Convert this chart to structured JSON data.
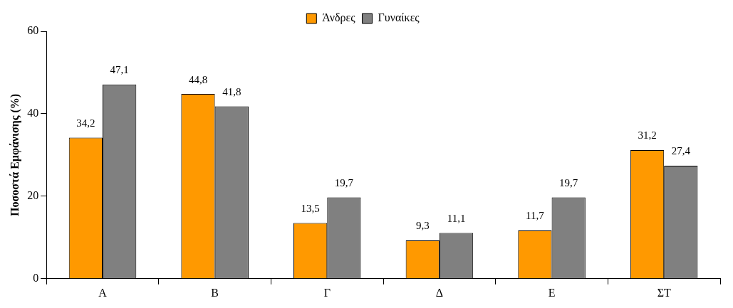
{
  "chart_data": {
    "type": "bar",
    "ylabel": "Ποσοστά Εμφάνισης (%)",
    "categories": [
      "Α",
      "Β",
      "Γ",
      "Δ",
      "Ε",
      "ΣΤ"
    ],
    "series": [
      {
        "name": "Άνδρες",
        "color": "#ff9900",
        "values": [
          34.2,
          44.8,
          13.5,
          9.3,
          11.7,
          31.2
        ],
        "value_labels": [
          "34,2",
          "44,8",
          "13,5",
          "9,3",
          "11,7",
          "31,2"
        ]
      },
      {
        "name": "Γυναίκες",
        "color": "#808080",
        "values": [
          47.1,
          41.8,
          19.7,
          11.1,
          19.7,
          27.4
        ],
        "value_labels": [
          "47,1",
          "41,8",
          "19,7",
          "11,1",
          "19,7",
          "27,4"
        ]
      }
    ],
    "ylim": [
      0,
      60
    ],
    "yticks": [
      0,
      20,
      40,
      60
    ],
    "grid": false,
    "legend": "top"
  }
}
